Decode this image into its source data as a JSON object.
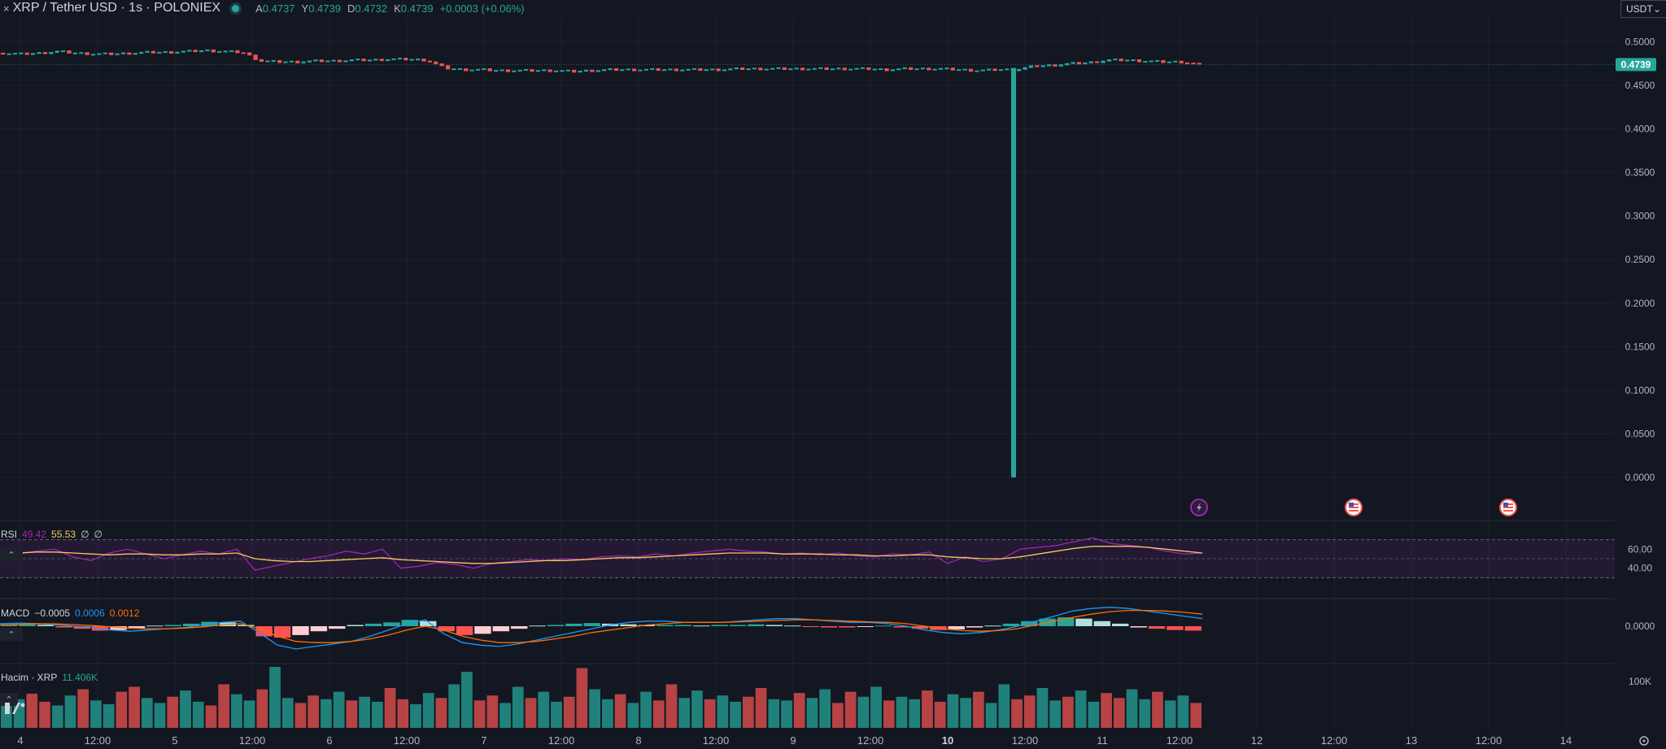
{
  "header": {
    "close_icon": "×",
    "symbol": "XRP / Tether USD · 1s · POLONIEX",
    "status_color": "#26a69a",
    "ohlc": [
      {
        "key": "A",
        "value": "0.4737"
      },
      {
        "key": "Y",
        "value": "0.4739"
      },
      {
        "key": "D",
        "value": "0.4732"
      },
      {
        "key": "K",
        "value": "0.4739"
      },
      {
        "key": "",
        "value": "+0.0003 (+0.06%)"
      }
    ]
  },
  "currency_button": {
    "label": "USDT",
    "icon": "chevron-down-icon"
  },
  "colors": {
    "up": "#26a69a",
    "down": "#ef5350",
    "rsi": "#9c27b0",
    "rsi_ma": "#f7c85c",
    "macd": "#2196f3",
    "signal": "#ff6d00"
  },
  "chart_data": [
    {
      "type": "candlestick",
      "name": "XRP / Tether USD · 1s · POLONIEX",
      "ylim": [
        0,
        0.52
      ],
      "y_ticks": [
        "0.5000",
        "0.4500",
        "0.4000",
        "0.3500",
        "0.3000",
        "0.2500",
        "0.2000",
        "0.1500",
        "0.1000",
        "0.0500",
        "0.0000"
      ],
      "last_price": "0.4739",
      "price_path": [
        0.487,
        0.486,
        0.487,
        0.489,
        0.487,
        0.486,
        0.486,
        0.487,
        0.488,
        0.488,
        0.489,
        0.49,
        0.489,
        0.488,
        0.478,
        0.477,
        0.477,
        0.478,
        0.478,
        0.479,
        0.479,
        0.48,
        0.48,
        0.479,
        0.47,
        0.468,
        0.468,
        0.467,
        0.467,
        0.467,
        0.467,
        0.466,
        0.467,
        0.468,
        0.468,
        0.468,
        0.468,
        0.468,
        0.468,
        0.468,
        0.469,
        0.469,
        0.469,
        0.469,
        0.469,
        0.469,
        0.469,
        0.469,
        0.468,
        0.469,
        0.469,
        0.469,
        0.468,
        0.467,
        0.468,
        0.468,
        0.472,
        0.473,
        0.475,
        0.476,
        0.479,
        0.479,
        0.478,
        0.477,
        0.477,
        0.474
      ],
      "spike": {
        "date_label": "10 12:00",
        "open": 0.469,
        "close": 0.469,
        "low": 0.0,
        "high": 0.47
      },
      "event_icons": [
        "lightning-icon",
        "flag-us-icon",
        "flag-us-icon"
      ]
    },
    {
      "type": "line",
      "name": "RSI",
      "label": "RSI",
      "values_text": [
        "49.42",
        "55.53",
        "∅",
        "∅"
      ],
      "ylim": [
        20,
        80
      ],
      "bands": [
        70,
        50,
        30
      ],
      "y_ticks": [
        "60.00",
        "40.00"
      ],
      "series": [
        {
          "name": "RSI",
          "values": [
            56,
            55,
            58,
            60,
            52,
            48,
            56,
            60,
            55,
            50,
            54,
            58,
            55,
            60,
            38,
            42,
            46,
            50,
            53,
            58,
            55,
            60,
            40,
            42,
            46,
            44,
            40,
            45,
            47,
            49,
            48,
            50,
            49,
            52,
            53,
            52,
            55,
            53,
            56,
            58,
            60,
            58,
            57,
            55,
            56,
            54,
            56,
            53,
            52,
            55,
            54,
            57,
            45,
            52,
            47,
            50,
            60,
            62,
            64,
            68,
            72,
            66,
            64,
            62,
            58,
            55,
            56
          ]
        },
        {
          "name": "MA",
          "values": [
            56,
            56,
            57,
            57,
            56,
            55,
            54,
            55,
            55,
            54,
            54,
            55,
            55,
            56,
            50,
            48,
            47,
            47,
            48,
            49,
            50,
            51,
            49,
            48,
            47,
            46,
            45,
            45,
            46,
            47,
            48,
            48,
            49,
            50,
            51,
            51,
            52,
            53,
            54,
            55,
            56,
            56,
            56,
            55,
            55,
            55,
            54,
            54,
            53,
            53,
            54,
            54,
            52,
            51,
            50,
            50,
            52,
            55,
            58,
            61,
            63,
            63,
            63,
            62,
            60,
            58,
            56
          ]
        }
      ]
    },
    {
      "type": "bar+line",
      "name": "MACD",
      "label": "MACD",
      "values_text": [
        "−0.0005",
        "0.0006",
        "0.0012"
      ],
      "y_ticks": [
        "0.0000"
      ],
      "histogram": [
        0.1,
        0.15,
        0.1,
        -0.1,
        -0.2,
        -0.35,
        -0.3,
        -0.2,
        0.05,
        0.1,
        0.2,
        0.35,
        0.3,
        0.1,
        -0.8,
        -0.9,
        -0.7,
        -0.4,
        -0.2,
        0.1,
        0.2,
        0.3,
        0.5,
        0.4,
        -0.4,
        -0.7,
        -0.6,
        -0.4,
        -0.2,
        0.05,
        0.1,
        0.2,
        0.25,
        0.2,
        0.15,
        0.1,
        0.1,
        0.1,
        0.05,
        0.1,
        0.1,
        0.15,
        0.1,
        0.05,
        -0.05,
        -0.1,
        -0.1,
        -0.05,
        0.05,
        -0.1,
        -0.2,
        -0.3,
        -0.25,
        -0.1,
        0.05,
        0.2,
        0.4,
        0.6,
        0.7,
        0.6,
        0.4,
        0.2,
        -0.1,
        -0.2,
        -0.3,
        -0.35
      ],
      "series": [
        {
          "name": "MACD",
          "values": [
            0.2,
            0.25,
            0.2,
            0.1,
            0.0,
            -0.1,
            -0.3,
            -0.4,
            -0.3,
            -0.2,
            -0.1,
            0.1,
            0.3,
            0.4,
            -0.5,
            -1.5,
            -1.8,
            -1.6,
            -1.4,
            -1.2,
            -0.8,
            -0.3,
            0.2,
            0.5,
            -0.6,
            -1.3,
            -1.5,
            -1.6,
            -1.4,
            -1.1,
            -0.8,
            -0.5,
            -0.2,
            0.1,
            0.3,
            0.4,
            0.4,
            0.3,
            0.3,
            0.3,
            0.4,
            0.5,
            0.6,
            0.6,
            0.5,
            0.4,
            0.3,
            0.3,
            0.2,
            0.0,
            -0.3,
            -0.5,
            -0.6,
            -0.5,
            -0.3,
            0.0,
            0.4,
            0.8,
            1.2,
            1.4,
            1.5,
            1.4,
            1.2,
            1.0,
            0.8,
            0.6
          ]
        },
        {
          "name": "Signal",
          "values": [
            0.1,
            0.15,
            0.2,
            0.18,
            0.12,
            0.05,
            -0.05,
            -0.15,
            -0.2,
            -0.2,
            -0.15,
            -0.05,
            0.1,
            0.2,
            -0.2,
            -0.8,
            -1.2,
            -1.3,
            -1.3,
            -1.2,
            -1.0,
            -0.7,
            -0.3,
            0.0,
            -0.3,
            -0.8,
            -1.1,
            -1.3,
            -1.3,
            -1.2,
            -1.0,
            -0.8,
            -0.5,
            -0.3,
            -0.1,
            0.1,
            0.2,
            0.3,
            0.3,
            0.3,
            0.35,
            0.4,
            0.45,
            0.5,
            0.5,
            0.45,
            0.4,
            0.35,
            0.3,
            0.2,
            0.0,
            -0.2,
            -0.35,
            -0.4,
            -0.35,
            -0.2,
            0.1,
            0.4,
            0.7,
            0.95,
            1.15,
            1.25,
            1.25,
            1.2,
            1.1,
            0.95
          ]
        }
      ]
    },
    {
      "type": "bar",
      "name": "Hacim · XRP",
      "label": "Hacim · XRP",
      "values_text": [
        "11.406K"
      ],
      "y_ticks": [
        "100K"
      ],
      "values": [
        40,
        46,
        55,
        42,
        36,
        52,
        62,
        44,
        38,
        58,
        66,
        48,
        40,
        50,
        60,
        42,
        36,
        70,
        54,
        44,
        62,
        98,
        48,
        40,
        52,
        46,
        58,
        44,
        50,
        42,
        64,
        46,
        38,
        56,
        48,
        70,
        90,
        44,
        52,
        40,
        66,
        48,
        58,
        42,
        50,
        96,
        62,
        46,
        54,
        40,
        58,
        44,
        70,
        48,
        60,
        46,
        52,
        42,
        50,
        64,
        46,
        44,
        56,
        48,
        62,
        40,
        58,
        50,
        66,
        44,
        50,
        46,
        60,
        42,
        54,
        48,
        58,
        40,
        70,
        46,
        52,
        64,
        44,
        50,
        60,
        42,
        56,
        48,
        62,
        46,
        58,
        44,
        52,
        40
      ],
      "colors_sequence": "alternating up/down"
    }
  ],
  "x_axis": {
    "labels": [
      "4",
      "12:00",
      "5",
      "12:00",
      "6",
      "12:00",
      "7",
      "12:00",
      "8",
      "12:00",
      "9",
      "12:00",
      "10",
      "12:00",
      "11",
      "12:00",
      "12",
      "12:00",
      "13",
      "12:00",
      "14"
    ],
    "bold_label": "10"
  }
}
